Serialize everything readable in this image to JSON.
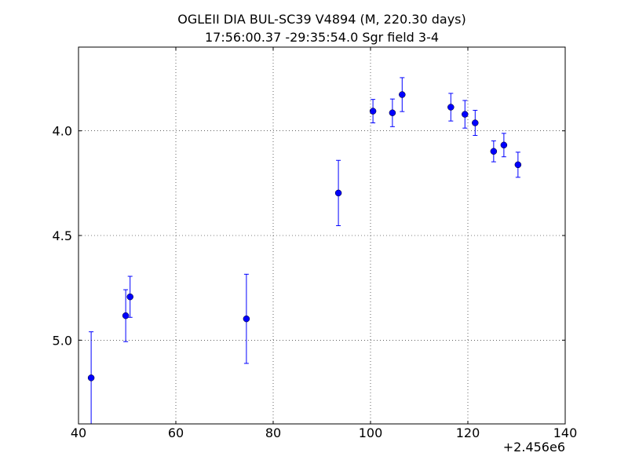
{
  "chart_data": {
    "type": "errorbar",
    "title": "OGLEII DIA BUL-SC39 V4894  (M, 220.30 days)",
    "subtitle": "17:56:00.37 -29:35:54.0 Sgr field 3-4",
    "x_offset_label": "+2.456e6",
    "x": [
      42.6,
      49.7,
      50.6,
      74.5,
      93.4,
      100.5,
      104.5,
      106.5,
      116.5,
      119.4,
      121.5,
      125.3,
      127.4,
      130.3
    ],
    "values": [
      5.18,
      4.883,
      4.793,
      4.898,
      4.297,
      3.906,
      3.914,
      3.827,
      3.887,
      3.921,
      3.962,
      4.098,
      4.068,
      4.162
    ],
    "errors": [
      0.22,
      0.124,
      0.098,
      0.213,
      0.156,
      0.056,
      0.066,
      0.081,
      0.066,
      0.066,
      0.06,
      0.05,
      0.056,
      0.06
    ],
    "color": "#0000ff",
    "xlim": [
      40,
      140
    ],
    "xticks": [
      40,
      60,
      80,
      100,
      120,
      140
    ],
    "ylim": [
      5.4,
      3.6
    ],
    "yticks": [
      {
        "value": 4.0,
        "label": "4.0"
      },
      4.5,
      {
        "value": 5.0,
        "label": "5.0"
      }
    ],
    "grid": true
  }
}
